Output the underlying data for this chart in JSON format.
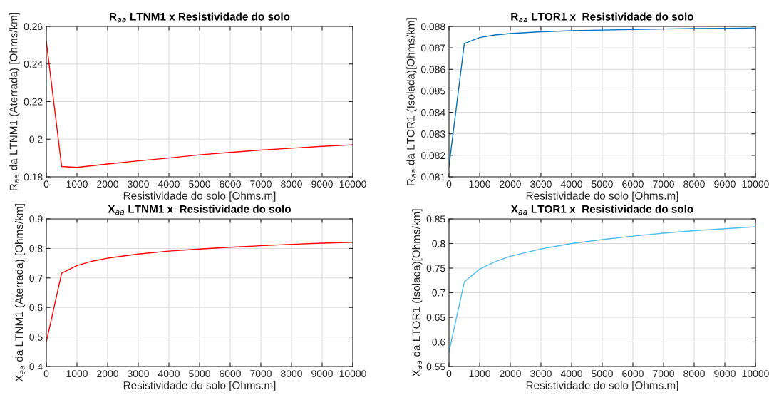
{
  "chart_data": [
    {
      "type": "line",
      "title": "R$_{aa}$ LTNM1 x Resistividade do solo",
      "xlabel": "Resistividade do solo [Ohms.m]",
      "ylabel": "R$_{aa}$ da LTNM1 (Aterrada) [Ohms/km]",
      "x": [
        0,
        500,
        1000,
        2000,
        3000,
        4000,
        5000,
        6000,
        7000,
        8000,
        9000,
        10000
      ],
      "series": [
        {
          "color": "#ff0000",
          "values": [
            0.252,
            0.1855,
            0.185,
            0.1868,
            0.1885,
            0.19,
            0.1917,
            0.193,
            0.1942,
            0.1952,
            0.1962,
            0.197
          ]
        }
      ],
      "xlim": [
        0,
        10000
      ],
      "xticks": [
        0,
        1000,
        2000,
        3000,
        4000,
        5000,
        6000,
        7000,
        8000,
        9000,
        10000
      ],
      "ylim": [
        0.18,
        0.26
      ],
      "yticks": [
        0.18,
        0.2,
        0.22,
        0.24,
        0.26
      ],
      "grid": true
    },
    {
      "type": "line",
      "title": "R$_{aa}$ LTOR1 x  Resistividade do solo",
      "xlabel": "Resistividade do solo [Ohms.m]",
      "ylabel": "R$_{aa}$ da LTOR1 (Isolada)[Ohms/km]",
      "x": [
        0,
        500,
        1000,
        1500,
        2000,
        3000,
        4000,
        5000,
        6000,
        7000,
        8000,
        9000,
        10000
      ],
      "series": [
        {
          "color": "#0072bd",
          "values": [
            0.0815,
            0.0872,
            0.08748,
            0.0876,
            0.08767,
            0.08775,
            0.0878,
            0.08783,
            0.08786,
            0.08788,
            0.0879,
            0.08791,
            0.08793
          ]
        }
      ],
      "xlim": [
        0,
        10000
      ],
      "xticks": [
        0,
        1000,
        2000,
        3000,
        4000,
        5000,
        6000,
        7000,
        8000,
        9000,
        10000
      ],
      "ylim": [
        0.081,
        0.088
      ],
      "yticks": [
        0.081,
        0.082,
        0.083,
        0.084,
        0.085,
        0.086,
        0.087,
        0.088
      ],
      "grid": true
    },
    {
      "type": "line",
      "title": "X$_{aa}$ LTNM1 x  Resistividade do solo",
      "xlabel": "Resistividade do solo [Ohms.m]",
      "ylabel": "X$_{aa}$ da LTNM1 (Aterrada) [Ohms/km]",
      "x": [
        0,
        500,
        1000,
        1500,
        2000,
        3000,
        4000,
        5000,
        6000,
        7000,
        8000,
        9000,
        10000
      ],
      "series": [
        {
          "color": "#ff0000",
          "values": [
            0.483,
            0.716,
            0.742,
            0.757,
            0.767,
            0.781,
            0.791,
            0.798,
            0.804,
            0.809,
            0.814,
            0.818,
            0.821
          ]
        }
      ],
      "xlim": [
        0,
        10000
      ],
      "xticks": [
        0,
        1000,
        2000,
        3000,
        4000,
        5000,
        6000,
        7000,
        8000,
        9000,
        10000
      ],
      "ylim": [
        0.4,
        0.9
      ],
      "yticks": [
        0.4,
        0.5,
        0.6,
        0.7,
        0.8,
        0.9
      ],
      "grid": true
    },
    {
      "type": "line",
      "title": "X$_{aa}$ LTOR1 x  Resistividade do solo",
      "xlabel": "Resistividade do solo [Ohms.m]",
      "ylabel": "X$_{aa}$ da LTOR1 (Isolada)[Ohms/km]",
      "x": [
        0,
        500,
        1000,
        1500,
        2000,
        3000,
        4000,
        5000,
        6000,
        7000,
        8000,
        9000,
        10000
      ],
      "series": [
        {
          "color": "#4dbeee",
          "values": [
            0.58,
            0.722,
            0.748,
            0.763,
            0.774,
            0.789,
            0.8,
            0.808,
            0.815,
            0.821,
            0.826,
            0.83,
            0.834
          ]
        }
      ],
      "xlim": [
        0,
        10000
      ],
      "xticks": [
        0,
        1000,
        2000,
        3000,
        4000,
        5000,
        6000,
        7000,
        8000,
        9000,
        10000
      ],
      "ylim": [
        0.55,
        0.85
      ],
      "yticks": [
        0.55,
        0.6,
        0.65,
        0.7,
        0.75,
        0.8,
        0.85
      ],
      "grid": true
    }
  ]
}
